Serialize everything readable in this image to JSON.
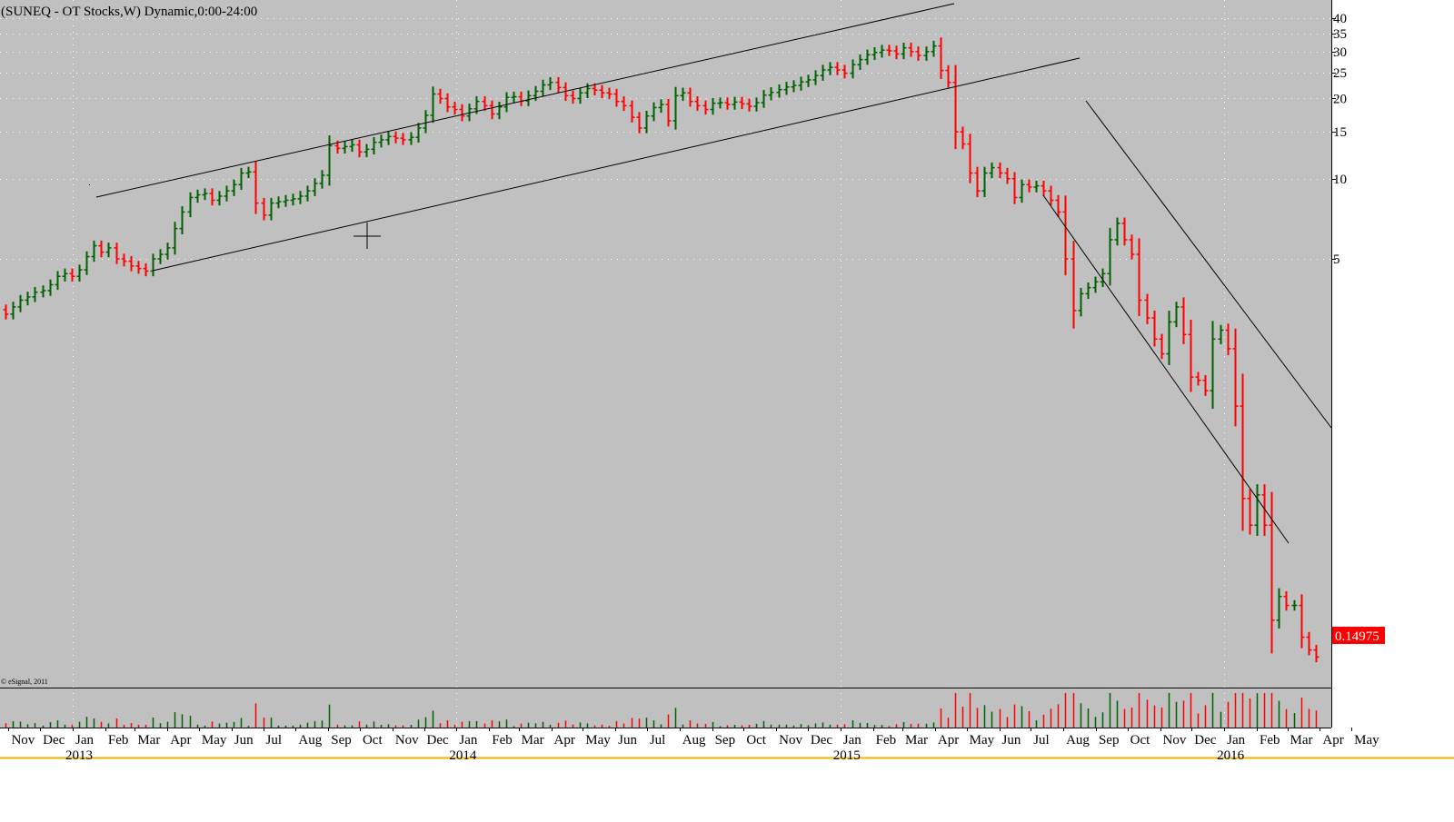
{
  "header": {
    "title": "(SUNEQ - OT Stocks,W) Dynamic,0:00-24:00",
    "watermark": "© eSignal, 2011"
  },
  "colors": {
    "background": "#c0c0c0",
    "up": "#006000",
    "down": "#ff0000",
    "grid": "#ffffff",
    "trendline": "#000000",
    "last_price_bg": "#ff0000",
    "last_price_text": "#ffffff"
  },
  "chart_data": {
    "type": "ohlc",
    "title": "(SUNEQ - OT Stocks,W) Dynamic,0:00-24:00",
    "y_scale": "log",
    "ylim": [
      0.12,
      42
    ],
    "y_ticks": [
      40,
      35,
      30,
      25,
      20,
      15,
      10,
      5
    ],
    "last_price": "0.14975",
    "grid": true,
    "x_month_labels": [
      "Nov",
      "Dec",
      "Jan",
      "Feb",
      "Mar",
      "Apr",
      "May",
      "Jun",
      "Jul",
      "Aug",
      "Sep",
      "Oct",
      "Nov",
      "Dec",
      "Jan",
      "Feb",
      "Mar",
      "Apr",
      "May",
      "Jun",
      "Jul",
      "Aug",
      "Sep",
      "Oct",
      "Nov",
      "Dec",
      "Jan",
      "Feb",
      "Mar",
      "Apr",
      "May",
      "Jun",
      "Jul",
      "Aug",
      "Sep",
      "Oct",
      "Nov",
      "Dec",
      "Jan",
      "Feb",
      "Mar",
      "Apr",
      "May"
    ],
    "x_year_labels": [
      "2013",
      "2014",
      "2015",
      "2016"
    ],
    "start_date": "2012-10-29",
    "weekly_close": [
      3.1,
      3.3,
      3.5,
      3.6,
      3.75,
      3.8,
      4.0,
      4.3,
      4.4,
      4.3,
      4.55,
      5.1,
      5.6,
      5.3,
      5.5,
      5.0,
      4.9,
      4.7,
      4.6,
      4.5,
      5.0,
      5.2,
      5.5,
      6.5,
      7.5,
      8.5,
      8.7,
      8.8,
      8.3,
      8.6,
      9.0,
      9.5,
      10.5,
      10.6,
      8.1,
      7.3,
      8.1,
      8.2,
      8.3,
      8.4,
      8.6,
      9.0,
      9.6,
      10.3,
      13.3,
      13.0,
      13.2,
      13.4,
      12.6,
      12.9,
      13.7,
      14.0,
      14.4,
      14.2,
      14.0,
      14.3,
      15.5,
      17.3,
      20.8,
      20.0,
      18.6,
      18.2,
      17.2,
      18.3,
      19.5,
      18.8,
      17.5,
      18.6,
      20.2,
      20.3,
      19.6,
      20.5,
      21.3,
      22.5,
      23.0,
      22.0,
      20.5,
      20.0,
      21.0,
      21.8,
      21.5,
      21.0,
      20.8,
      19.5,
      18.8,
      17.0,
      15.5,
      17.2,
      18.5,
      19.0,
      16.5,
      20.5,
      21.0,
      19.5,
      18.8,
      18.2,
      19.2,
      19.3,
      19.0,
      19.4,
      19.1,
      18.7,
      19.3,
      20.6,
      21.1,
      21.6,
      22.1,
      22.4,
      23.1,
      23.5,
      24.4,
      25.6,
      26.2,
      25.6,
      24.9,
      26.8,
      28.0,
      29.2,
      29.8,
      30.4,
      30.2,
      29.4,
      31.0,
      30.0,
      29.0,
      30.0,
      31.5,
      25.5,
      23.0,
      15.0,
      13.5,
      10.5,
      9.0,
      10.5,
      11.0,
      10.5,
      10.0,
      8.5,
      9.5,
      9.3,
      9.4,
      9.0,
      8.3,
      7.5,
      5.0,
      3.2,
      3.7,
      3.9,
      4.1,
      4.4,
      5.9,
      6.8,
      5.9,
      5.2,
      3.5,
      3.0,
      2.5,
      2.2,
      2.9,
      3.3,
      2.6,
      1.8,
      1.75,
      1.6,
      2.5,
      2.7,
      2.3,
      1.4,
      0.63,
      0.5,
      0.65,
      0.5,
      0.22,
      0.27,
      0.25,
      0.25,
      0.19,
      0.17,
      0.16
    ]
  }
}
